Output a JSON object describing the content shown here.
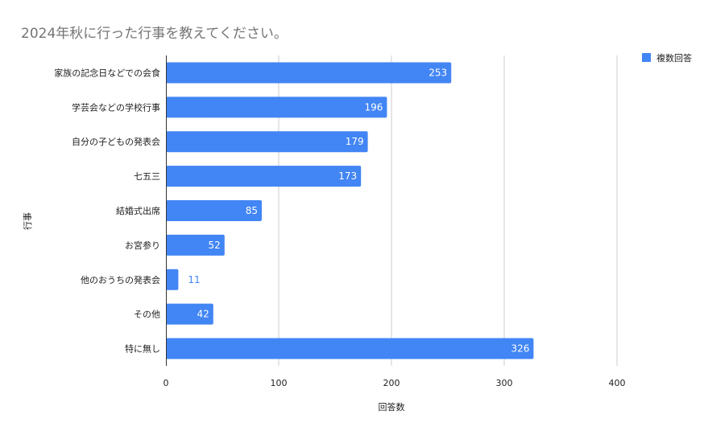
{
  "chart_data": {
    "type": "bar",
    "orientation": "horizontal",
    "title": "2024年秋に行った行事を教えてください。",
    "xlabel": "回答数",
    "ylabel": "行事",
    "categories": [
      "家族の記念日などでの会食",
      "学芸会などの学校行事",
      "自分の子どもの発表会",
      "七五三",
      "結婚式出席",
      "お宮参り",
      "他のおうちの発表会",
      "その他",
      "特に無し"
    ],
    "series": [
      {
        "name": "複数回答",
        "values": [
          253,
          196,
          179,
          173,
          85,
          52,
          11,
          42,
          326
        ]
      }
    ],
    "xlim": [
      0,
      400
    ],
    "x_ticks": [
      "0",
      "100",
      "200",
      "300",
      "400"
    ],
    "data_labels": [
      "253",
      "196",
      "179",
      "173",
      "85",
      "52",
      "11",
      "42",
      "326"
    ],
    "grid": true,
    "legend_position": "top-right",
    "colors": {
      "bar": "#4285f4",
      "label_inside": "#ffffff",
      "label_outside": "#4285f4",
      "grid": "#cccccc",
      "title": "#757575",
      "text": "#222222"
    }
  }
}
